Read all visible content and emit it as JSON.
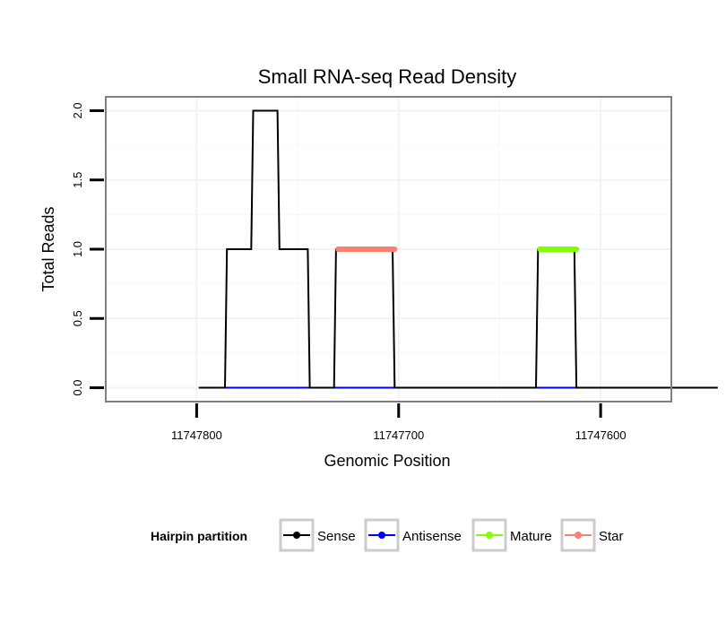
{
  "chart_data": {
    "type": "line",
    "title": "Small RNA-seq Read Density",
    "xlabel": "Genomic Position",
    "ylabel": "Total Reads",
    "x_reversed": true,
    "xlim": [
      11747845,
      11747565
    ],
    "ylim": [
      -0.1,
      2.1
    ],
    "x_ticks": [
      11747800,
      11747700,
      11747600
    ],
    "x_tick_labels": [
      "11747800",
      "11747700",
      "11747600"
    ],
    "y_ticks": [
      0,
      0.5,
      1,
      1.5,
      2
    ],
    "y_tick_labels": [
      "0.0",
      "0.5",
      "1.0",
      "1.5",
      "2.0"
    ],
    "grid": true,
    "legend": {
      "title": "Hairpin partition",
      "placement": "bottom",
      "entries": [
        {
          "label": "Sense",
          "color": "#000000"
        },
        {
          "label": "Antisense",
          "color": "#0000ff"
        },
        {
          "label": "Mature",
          "color": "#7fff00"
        },
        {
          "label": "Star",
          "color": "#fa8072"
        }
      ]
    },
    "series": [
      {
        "name": "Sense",
        "color": "#000000",
        "width": "thin",
        "x": [
          11747799,
          11747786,
          11747785,
          11747773,
          11747772,
          11747760,
          11747759,
          11747745,
          11747744,
          11747732,
          11747731,
          11747703,
          11747702,
          11747632,
          11747631,
          11747613,
          11747612,
          11747542
        ],
        "y": [
          0,
          0,
          1,
          1,
          2,
          2,
          1,
          1,
          0,
          0,
          1,
          1,
          0,
          0,
          1,
          1,
          0,
          0
        ]
      },
      {
        "name": "Antisense",
        "color": "#0000ff",
        "width": "thin",
        "x": [
          11747786,
          11747744,
          11747732,
          11747702,
          11747632,
          11747612
        ],
        "y": [
          0,
          0,
          0,
          0,
          0,
          0
        ],
        "segments": [
          [
            11747786,
            11747744
          ],
          [
            11747732,
            11747702
          ],
          [
            11747632,
            11747612
          ]
        ]
      },
      {
        "name": "Mature",
        "color": "#7fff00",
        "width": "thick",
        "x": [
          11747630,
          11747612
        ],
        "y": [
          1,
          1
        ]
      },
      {
        "name": "Star",
        "color": "#fa8072",
        "width": "thick",
        "x": [
          11747730,
          11747702
        ],
        "y": [
          1,
          1
        ]
      }
    ]
  }
}
